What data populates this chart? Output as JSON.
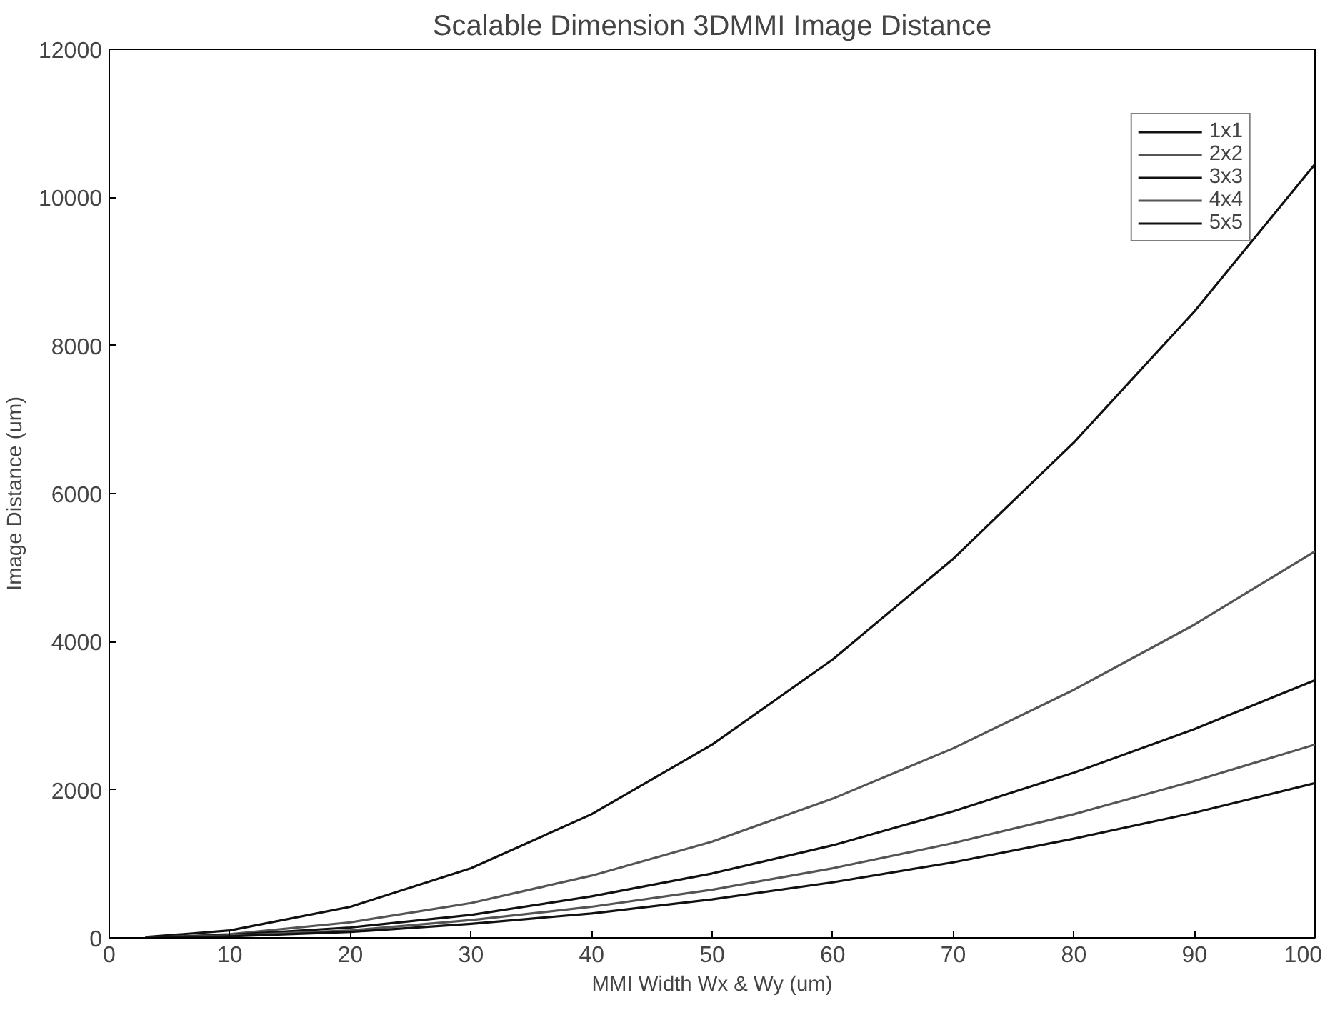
{
  "chart_data": {
    "type": "line",
    "title": "Scalable Dimension 3DMMI Image Distance",
    "xlabel": "MMI Width Wx & Wy (um)",
    "ylabel": "Image Distance (um)",
    "x": [
      3,
      10,
      20,
      30,
      40,
      50,
      60,
      70,
      80,
      90,
      100
    ],
    "series": [
      {
        "name": "1x1",
        "color": "#111111",
        "values": [
          10,
          100,
          420,
          940,
          1670,
          2610,
          3760,
          5120,
          6690,
          8460,
          10450
        ]
      },
      {
        "name": "2x2",
        "color": "#555555",
        "values": [
          0,
          50,
          210,
          470,
          840,
          1300,
          1880,
          2560,
          3350,
          4230,
          5220
        ]
      },
      {
        "name": "3x3",
        "color": "#111111",
        "values": [
          0,
          40,
          140,
          310,
          560,
          870,
          1250,
          1710,
          2230,
          2820,
          3480
        ]
      },
      {
        "name": "4x4",
        "color": "#555555",
        "values": [
          0,
          30,
          100,
          240,
          420,
          650,
          940,
          1280,
          1670,
          2120,
          2610
        ]
      },
      {
        "name": "5x5",
        "color": "#111111",
        "values": [
          0,
          20,
          80,
          190,
          330,
          520,
          750,
          1020,
          1340,
          1690,
          2090
        ]
      }
    ],
    "xlim": [
      0,
      100
    ],
    "xticks": [
      0,
      10,
      20,
      30,
      40,
      50,
      60,
      70,
      80,
      90,
      100
    ],
    "ylim": [
      0,
      12000
    ],
    "yticks": [
      0,
      2000,
      4000,
      6000,
      8000,
      10000,
      12000
    ],
    "grid": false,
    "legend": "top right",
    "marker": "none",
    "line_style": "solid"
  }
}
